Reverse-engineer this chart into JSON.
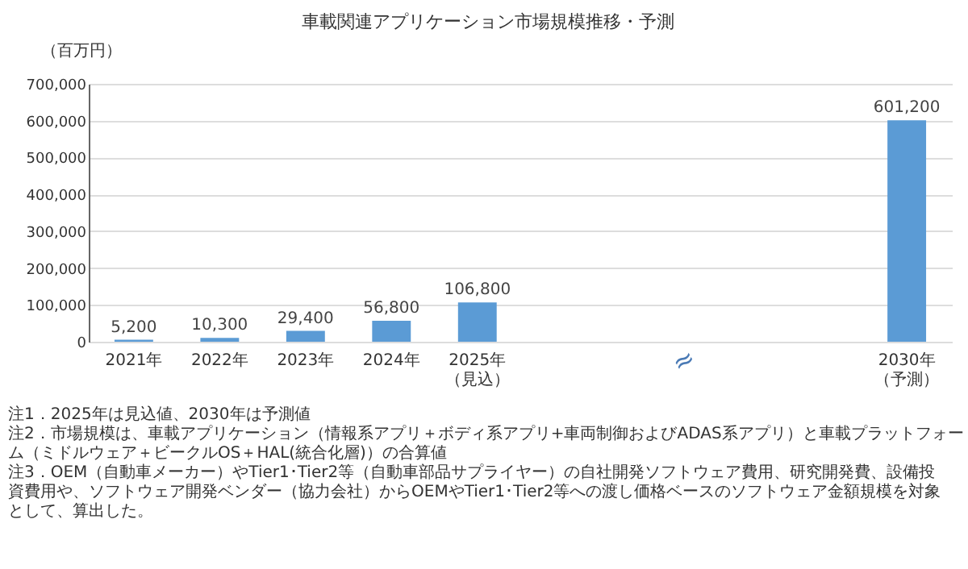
{
  "chart_data": {
    "type": "bar",
    "title": "車載関連アプリケーション市場規模推移・予測",
    "ylabel": "（百万円）",
    "categories": [
      "2021年",
      "2022年",
      "2023年",
      "2024年",
      "2025年（見込）",
      null,
      null,
      null,
      null,
      "2030年（予測）"
    ],
    "values": [
      5200,
      10300,
      29400,
      56800,
      106800,
      null,
      null,
      null,
      null,
      601200
    ],
    "value_labels": [
      "5,200",
      "10,300",
      "29,400",
      "56,800",
      "106,800",
      null,
      null,
      null,
      null,
      "601,200"
    ],
    "color": "#5b9bd5",
    "grid": "y",
    "ylim": [
      0,
      700000
    ],
    "yticks": [
      0,
      {
        "value": 100000,
        "label": "100,000"
      },
      {
        "value": 200000,
        "label": "200,000"
      },
      {
        "value": 300000,
        "label": "300,000"
      },
      {
        "value": 400000,
        "label": "400,000"
      },
      {
        "value": 500000,
        "label": "500,000"
      },
      {
        "value": 600000,
        "label": "600,000"
      },
      {
        "value": 700000,
        "label": "700,000"
      }
    ],
    "annotations": [
      "≈",
      "注1．2025年は見込値、2030年は予測値",
      "注2．市場規模は、車載アプリケーション（情報系アプリ＋ボディ系アプリ+車両制御およびADAS系アプリ）と車載プラットフォーム（ミドルウェア＋ビークルOS＋HAL(統合化層)）の合算値",
      "注3．OEM（自動車メーカー）やTier1･Tier2等（自動車部品サプライヤー）の自社開発ソフトウェア費用、研究開発費、設備投資費用や、ソフトウェア開発ベンダー（協力会社）からOEMやTier1･Tier2等への渡し価格ベースのソフトウェア金額規模を対象として、算出した。"
    ]
  }
}
